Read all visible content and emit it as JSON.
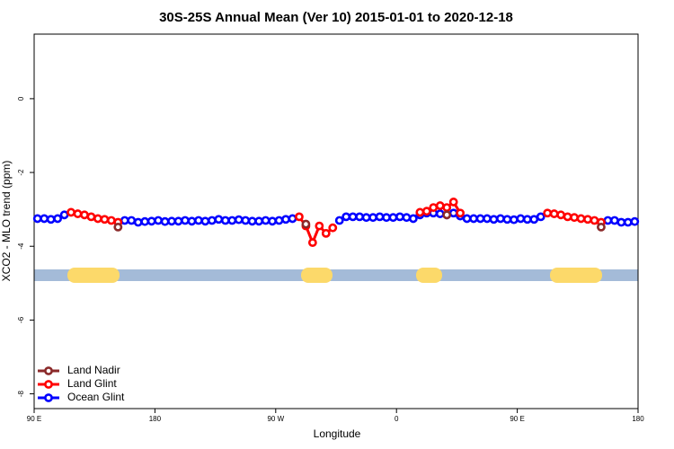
{
  "chart_data": {
    "type": "line",
    "title": "30S-25S Annual Mean (Ver 10)   2015-01-01 to 2020-12-18",
    "xlabel": "Longitude",
    "ylabel": "XCO2 - MLO trend (ppm)",
    "x": [
      92.5,
      97.5,
      102.5,
      107.5,
      112.5,
      117.5,
      122.5,
      127.5,
      132.5,
      137.5,
      142.5,
      147.5,
      152.5,
      157.5,
      162.5,
      167.5,
      172.5,
      177.5,
      182.5,
      187.5,
      192.5,
      197.5,
      202.5,
      207.5,
      212.5,
      217.5,
      222.5,
      227.5,
      232.5,
      237.5,
      242.5,
      247.5,
      252.5,
      257.5,
      262.5,
      267.5,
      272.5,
      277.5,
      282.5,
      287.5,
      292.5,
      297.5,
      302.5,
      307.5,
      312.5,
      317.5,
      322.5,
      327.5,
      332.5,
      337.5,
      342.5,
      347.5,
      352.5,
      357.5,
      362.5,
      367.5,
      372.5,
      377.5,
      382.5,
      387.5,
      392.5,
      397.5,
      402.5,
      407.5,
      412.5,
      417.5,
      422.5,
      427.5,
      432.5,
      437.5,
      442.5,
      447.5,
      452.5,
      457.5,
      462.5,
      467.5,
      472.5,
      477.5,
      482.5,
      487.5,
      492.5,
      497.5,
      502.5,
      507.5,
      512.5,
      517.5,
      522.5,
      527.5,
      532.5,
      537.5
    ],
    "series": [
      {
        "name": "Land Nadir",
        "color": "#8b2a2a",
        "values": [
          null,
          null,
          null,
          null,
          null,
          null,
          null,
          null,
          null,
          null,
          null,
          null,
          -3.48,
          null,
          null,
          null,
          null,
          null,
          null,
          null,
          null,
          null,
          null,
          null,
          null,
          null,
          null,
          null,
          null,
          null,
          null,
          null,
          null,
          null,
          null,
          null,
          null,
          null,
          null,
          null,
          -3.4,
          null,
          null,
          null,
          null,
          null,
          null,
          null,
          null,
          null,
          null,
          null,
          null,
          null,
          null,
          null,
          null,
          null,
          null,
          null,
          null,
          -3.15,
          null,
          null,
          null,
          null,
          null,
          null,
          null,
          null,
          null,
          null,
          null,
          null,
          null,
          null,
          null,
          null,
          null,
          null,
          null,
          null,
          null,
          null,
          -3.48,
          null,
          null,
          null,
          null,
          null
        ]
      },
      {
        "name": "Land Glint",
        "color": "#ff0000",
        "values": [
          null,
          null,
          null,
          null,
          null,
          -3.08,
          -3.12,
          -3.15,
          -3.2,
          -3.25,
          -3.27,
          -3.3,
          -3.35,
          null,
          null,
          null,
          null,
          null,
          null,
          null,
          null,
          null,
          null,
          null,
          null,
          null,
          null,
          null,
          null,
          null,
          null,
          null,
          null,
          null,
          null,
          null,
          null,
          null,
          null,
          -3.2,
          -3.45,
          -3.9,
          -3.45,
          -3.65,
          -3.5,
          null,
          null,
          null,
          null,
          null,
          null,
          null,
          null,
          null,
          null,
          null,
          null,
          -3.08,
          -3.05,
          -2.95,
          -2.9,
          -2.95,
          -2.8,
          -3.1,
          null,
          null,
          null,
          null,
          null,
          null,
          null,
          null,
          null,
          null,
          null,
          null,
          -3.1,
          -3.12,
          -3.15,
          -3.2,
          -3.22,
          -3.25,
          -3.27,
          -3.3,
          -3.35,
          null,
          null,
          null,
          null,
          null
        ]
      },
      {
        "name": "Ocean Glint",
        "color": "#0000ff",
        "values": [
          -3.25,
          -3.25,
          -3.27,
          -3.25,
          -3.15,
          null,
          null,
          null,
          null,
          null,
          null,
          null,
          null,
          -3.3,
          -3.3,
          -3.35,
          -3.33,
          -3.32,
          -3.3,
          -3.33,
          -3.32,
          -3.32,
          -3.3,
          -3.32,
          -3.3,
          -3.32,
          -3.3,
          -3.27,
          -3.3,
          -3.3,
          -3.28,
          -3.3,
          -3.32,
          -3.32,
          -3.3,
          -3.32,
          -3.3,
          -3.27,
          -3.25,
          null,
          null,
          null,
          null,
          null,
          null,
          -3.3,
          -3.2,
          -3.2,
          -3.2,
          -3.22,
          -3.22,
          -3.2,
          -3.22,
          -3.22,
          -3.2,
          -3.22,
          -3.25,
          -3.15,
          -3.1,
          -3.1,
          -3.12,
          -3.15,
          -3.1,
          -3.18,
          -3.25,
          -3.25,
          -3.25,
          -3.25,
          -3.27,
          -3.25,
          -3.27,
          -3.28,
          -3.25,
          -3.27,
          -3.27,
          -3.2,
          null,
          null,
          null,
          null,
          null,
          null,
          null,
          null,
          null,
          -3.3,
          -3.3,
          -3.35,
          -3.35,
          -3.33
        ]
      }
    ],
    "xlim": [
      90,
      540
    ],
    "xticks": [
      {
        "value": 90,
        "label": "90 E"
      },
      180,
      {
        "value": 270,
        "label": "90 W"
      },
      {
        "value": 360,
        "label": "0"
      },
      {
        "value": 450,
        "label": "90 E"
      },
      {
        "value": 540,
        "label": "180"
      }
    ],
    "ylim": [
      -8.4,
      1.75
    ],
    "yticks": [
      0,
      -2,
      -4,
      -6,
      -8
    ],
    "legend": "lower left"
  }
}
